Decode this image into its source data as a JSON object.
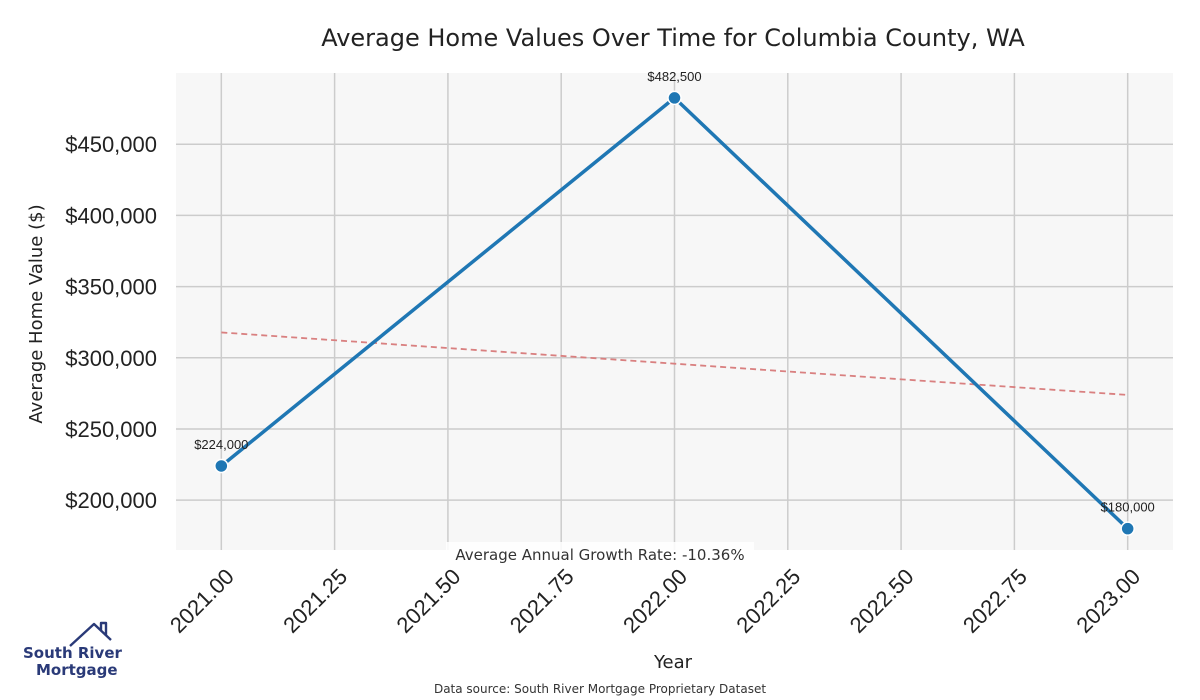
{
  "chart_data": {
    "type": "line",
    "title": "Average Home Values Over Time for Columbia County, WA",
    "xlabel": "Year",
    "ylabel": "Average Home Value ($)",
    "x": [
      2021.0,
      2022.0,
      2023.0
    ],
    "series": [
      {
        "values": [
          224000,
          482500,
          180000
        ],
        "color": "#1f77b4"
      }
    ],
    "data_labels": [
      "$224,000",
      "$482,500",
      "$180,000"
    ],
    "trend_line": {
      "start": [
        2021.0,
        317800
      ],
      "end": [
        2023.0,
        273900
      ],
      "color": "#d98080",
      "style": "dashed"
    },
    "x_ticks": [
      2021.0,
      2021.25,
      2021.5,
      2021.75,
      2022.0,
      2022.25,
      2022.5,
      2022.75,
      2023.0
    ],
    "x_tick_labels": [
      "2021.00",
      "2021.25",
      "2021.50",
      "2021.75",
      "2022.00",
      "2022.25",
      "2022.50",
      "2022.75",
      "2023.00"
    ],
    "y_ticks": [
      200000,
      250000,
      300000,
      350000,
      400000,
      450000
    ],
    "y_tick_labels": [
      "$200,000",
      "$250,000",
      "$300,000",
      "$350,000",
      "$400,000",
      "$450,000"
    ],
    "xlim": [
      2020.9,
      2023.1
    ],
    "ylim": [
      165000,
      500000
    ],
    "grid": true,
    "annotation": "Average Annual Growth Rate: -10.36%"
  },
  "footer": {
    "source": "Data source: South River Mortgage Proprietary Dataset"
  },
  "logo": {
    "line1": "South River",
    "line2": "Mortgage",
    "color": "#2a3a78"
  }
}
